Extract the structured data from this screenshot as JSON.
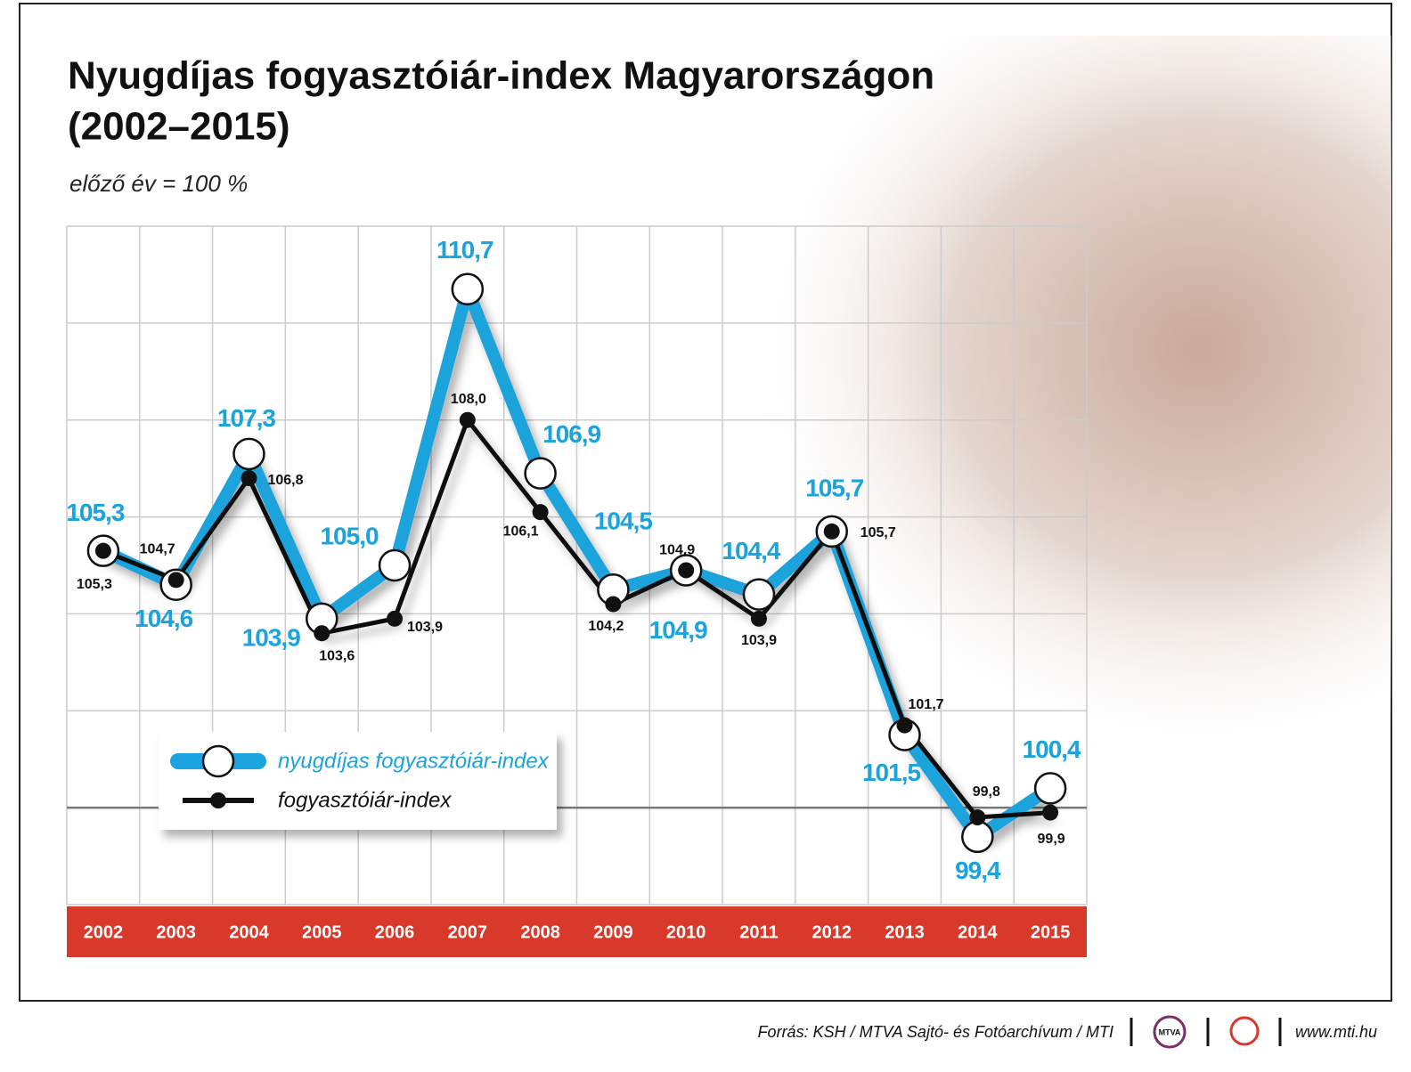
{
  "chart_data": {
    "type": "line",
    "title": "Nyugdíjas fogyasztóiár-index Magyarországon",
    "title_line2": "(2002–2015)",
    "subtitle": "előző év = 100 %",
    "categories": [
      "2002",
      "2003",
      "2004",
      "2005",
      "2006",
      "2007",
      "2008",
      "2009",
      "2010",
      "2011",
      "2012",
      "2013",
      "2014",
      "2015"
    ],
    "series": [
      {
        "name": "nyugdíjas fogyasztóiár-index",
        "color": "#1aa3dc",
        "values": [
          105.3,
          104.6,
          107.3,
          103.9,
          105.0,
          110.7,
          106.9,
          104.5,
          104.9,
          104.4,
          105.7,
          101.5,
          99.4,
          100.4
        ],
        "value_labels": [
          "105,3",
          "104,6",
          "107,3",
          "103,9",
          "105,0",
          "110,7",
          "106,9",
          "104,5",
          "104,9",
          "104,4",
          "105,7",
          "101,5",
          "99,4",
          "100,4"
        ]
      },
      {
        "name": "fogyasztóiár-index",
        "color": "#111111",
        "values": [
          105.3,
          104.7,
          106.8,
          103.6,
          103.9,
          108.0,
          106.1,
          104.2,
          104.9,
          103.9,
          105.7,
          101.7,
          99.8,
          99.9
        ],
        "value_labels": [
          "105,3",
          "104,7",
          "106,8",
          "103,6",
          "103,9",
          "108,0",
          "106,1",
          "104,2",
          "104,9",
          "103,9",
          "105,7",
          "101,7",
          "99,8",
          "99,9"
        ]
      }
    ],
    "ylim": [
      98,
      112
    ],
    "yticks": [
      98,
      100,
      102,
      104,
      106,
      108,
      110,
      112
    ],
    "grid": true,
    "baseline": 100,
    "source": "Forrás: KSH / MTVA Sajtó- és Fotóarchívum / MTI",
    "logo": "MTVA",
    "website": "www.mti.hu"
  }
}
